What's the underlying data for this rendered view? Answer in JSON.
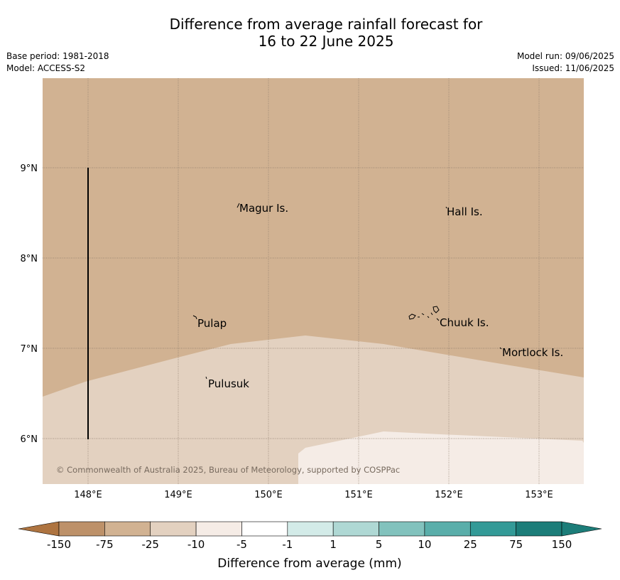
{
  "title": {
    "line1": "Difference from average rainfall forecast for",
    "line2": "16 to 22 June 2025"
  },
  "meta": {
    "base_period": "Base period: 1981-2018",
    "model": "Model: ACCESS-S2",
    "model_run": "Model run: 09/06/2025",
    "issued": "Issued: 11/06/2025"
  },
  "map": {
    "lat_labels": [
      "9°N",
      "8°N",
      "7°N",
      "6°N"
    ],
    "lon_labels": [
      "148°E",
      "149°E",
      "150°E",
      "151°E",
      "152°E",
      "153°E"
    ],
    "places": [
      {
        "name": "Magur Is."
      },
      {
        "name": "Hall Is."
      },
      {
        "name": "Pulap"
      },
      {
        "name": "Chuuk Is."
      },
      {
        "name": "Mortlock Is."
      },
      {
        "name": "Pulusuk"
      }
    ],
    "copyright": "© Commonwealth of Australia 2025, Bureau of Meteorology, supported by COSPPac",
    "colors": {
      "band_-25_-10": "#d1b292",
      "band_-10_-5": "#e3d1c0",
      "band_-5_-1": "#f5ece6"
    }
  },
  "legend": {
    "ticks": [
      "-150",
      "-75",
      "-25",
      "-10",
      "-5",
      "-1",
      "1",
      "5",
      "10",
      "25",
      "75",
      "150"
    ],
    "colors": [
      "#ae7440",
      "#bd9169",
      "#d1b292",
      "#e3d1c0",
      "#f5ece6",
      "#ffffff",
      "#d3ebe8",
      "#afd8d4",
      "#82c2bd",
      "#5aaeaa",
      "#339a97",
      "#1c7d79"
    ],
    "label": "Difference from average (mm)"
  }
}
